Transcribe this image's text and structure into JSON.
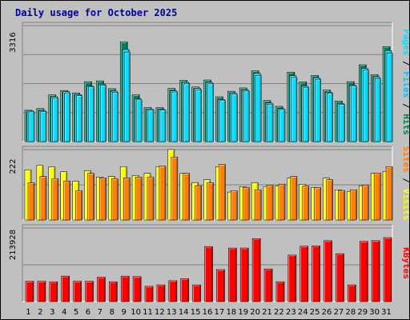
{
  "chart_data": {
    "type": "bar",
    "title": "Daily usage for October 2025",
    "days": [
      "1",
      "2",
      "3",
      "4",
      "5",
      "6",
      "7",
      "8",
      "9",
      "10",
      "11",
      "12",
      "13",
      "14",
      "15",
      "16",
      "17",
      "18",
      "19",
      "20",
      "21",
      "22",
      "23",
      "24",
      "25",
      "26",
      "27",
      "28",
      "29",
      "30",
      "31"
    ],
    "weekend_days": [
      "4",
      "5",
      "11",
      "12",
      "18",
      "19",
      "25",
      "26"
    ],
    "colors": {
      "hits": "#00805c",
      "files": "#00c0ff",
      "pages": "#00e0ff",
      "visits": "#ffff00",
      "sites": "#ff8000",
      "kbytes": "#ff0000",
      "title": "#0000a0",
      "weekend_label": "#00805c",
      "background": "#c0c0c0",
      "grid": "#808080"
    },
    "panels": [
      {
        "id": "hits_files_pages",
        "max_label": "3316",
        "ymax": 3316,
        "legend": [
          {
            "text": "Pages",
            "color": "#00e0ff"
          },
          {
            "text": " / ",
            "color": "#000000"
          },
          {
            "text": "Files",
            "color": "#00c0ff"
          },
          {
            "text": " / ",
            "color": "#000000"
          },
          {
            "text": "Hits",
            "color": "#00805c"
          }
        ],
        "series": [
          {
            "name": "Hits",
            "color": "#00805c",
            "values": [
              895,
              942,
              1335,
              1460,
              1390,
              1712,
              1735,
              1512,
              2848,
              1335,
              971,
              971,
              1517,
              1749,
              1560,
              1760,
              1280,
              1437,
              1534,
              2022,
              1173,
              1008,
              1984,
              1707,
              1891,
              1473,
              1159,
              1712,
              2195,
              1912,
              2715
            ]
          },
          {
            "name": "Files",
            "color": "#00c0ff",
            "values": [
              870,
              884,
              1280,
              1425,
              1340,
              1588,
              1640,
              1440,
              2630,
              1220,
              930,
              920,
              1450,
              1690,
              1520,
              1690,
              1200,
              1385,
              1475,
              1950,
              1100,
              940,
              1880,
              1580,
              1820,
              1410,
              1090,
              1610,
              2090,
              1850,
              2600
            ]
          },
          {
            "name": "Pages",
            "color": "#00e0ff",
            "values": [
              846,
              860,
              1245,
              1390,
              1310,
              1560,
              1610,
              1410,
              2555,
              1190,
              905,
              895,
              1415,
              1650,
              1480,
              1650,
              1170,
              1350,
              1440,
              1890,
              1070,
              915,
              1830,
              1550,
              1775,
              1380,
              1060,
              1580,
              2040,
              1800,
              2530
            ]
          }
        ]
      },
      {
        "id": "visits_sites",
        "max_label": "222",
        "ymax": 222,
        "legend": [
          {
            "text": "Sites",
            "color": "#ff8000"
          },
          {
            "text": " / ",
            "color": "#000000"
          },
          {
            "text": "Visits",
            "color": "#ffff00"
          }
        ],
        "series": [
          {
            "name": "Visits",
            "color": "#ffff00",
            "values": [
              158,
              172,
              167,
              152,
              122,
              155,
              135,
              137,
              168,
              140,
              147,
              168,
              222,
              147,
              118,
              127,
              168,
              88,
              105,
              118,
              105,
              108,
              132,
              112,
              102,
              132,
              95,
              90,
              108,
              147,
              153
            ]
          },
          {
            "name": "Sites",
            "color": "#ff8000",
            "values": [
              117,
              137,
              130,
              123,
              92,
              147,
              133,
              130,
              133,
              135,
              135,
              170,
              198,
              147,
              108,
              117,
              175,
              92,
              103,
              95,
              110,
              113,
              137,
              107,
              102,
              127,
              93,
              95,
              110,
              148,
              168
            ]
          }
        ]
      },
      {
        "id": "kbytes",
        "max_label": "213928",
        "ymax": 213928,
        "legend": [
          {
            "text": "KBytes",
            "color": "#ff0000"
          }
        ],
        "series": [
          {
            "name": "KBytes",
            "color": "#ff0000",
            "values": [
              59100,
              59100,
              57600,
              74000,
              59100,
              59100,
              71000,
              57600,
              73900,
              72500,
              44400,
              48500,
              60600,
              66500,
              48500,
              160000,
              93000,
              155500,
              155600,
              183000,
              94800,
              57600,
              135000,
              161000,
              162000,
              177000,
              139200,
              48500,
              175000,
              177100,
              186000
            ]
          }
        ]
      }
    ]
  }
}
